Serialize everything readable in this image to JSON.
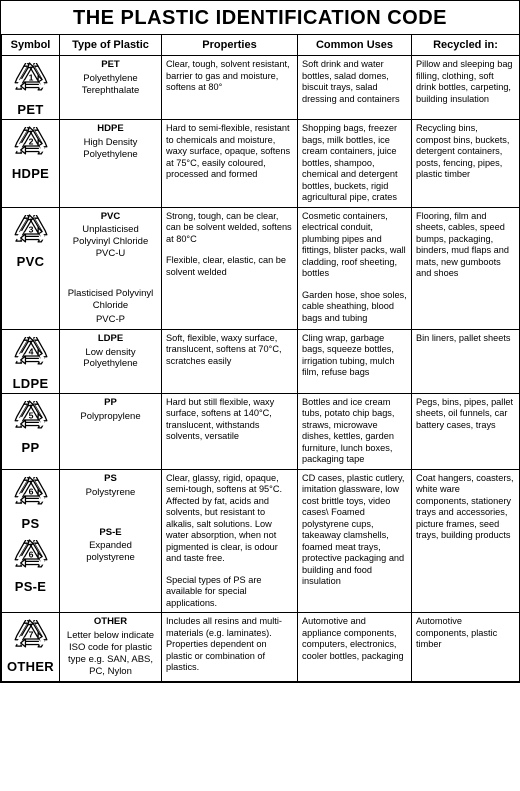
{
  "title": "THE PLASTIC IDENTIFICATION CODE",
  "title_fontsize": 20,
  "headers": {
    "symbol": "Symbol",
    "type": "Type of Plastic",
    "properties": "Properties",
    "uses": "Common Uses",
    "recycled": "Recycled in:"
  },
  "header_fontsize": 11,
  "symbol_svg": {
    "size": 38,
    "stroke": "#000000",
    "stroke_width": 1.6,
    "number_fontsize": 11
  },
  "rows": [
    {
      "code": "1",
      "label": "PET",
      "types": [
        {
          "name": "PET",
          "sub": "Polyethylene Terephthalate"
        }
      ],
      "properties": "Clear, tough, solvent resistant, barrier to gas and moisture, softens at 80°",
      "uses": "Soft drink and water bottles, salad domes, biscuit trays, salad dressing and containers",
      "recycled": "Pillow and sleeping bag filling, clothing, soft drink bottles, carpeting, building insulation"
    },
    {
      "code": "2",
      "label": "HDPE",
      "types": [
        {
          "name": "HDPE",
          "sub": "High Density Polyethylene"
        }
      ],
      "properties": "Hard to semi-flexible, resistant to chemicals and moisture, waxy surface, opaque, softens at 75°C, easily coloured, processed and formed",
      "uses": "Shopping bags, freezer bags, milk bottles, ice cream containers, juice bottles, shampoo, chemical and detergent bottles, buckets, rigid agricultural pipe, crates",
      "recycled": "Recycling bins, compost bins, buckets, detergent containers, posts, fencing, pipes, plastic timber"
    },
    {
      "code": "3",
      "label": "PVC",
      "types": [
        {
          "name": "PVC",
          "sub": "Unplasticised Polyvinyl Chloride PVC-U"
        },
        {
          "name": "",
          "sub": "Plasticised Polyvinyl Chloride",
          "extra": "PVC-P"
        }
      ],
      "properties_multi": [
        "Strong, tough, can be clear, can be solvent welded, softens at 80°C",
        "Flexible, clear, elastic, can be solvent welded"
      ],
      "uses_multi": [
        "Cosmetic containers, electrical conduit, plumbing pipes and fittings, blister packs, wall cladding, roof sheeting, bottles",
        "Garden hose, shoe soles, cable sheathing, blood bags and tubing"
      ],
      "recycled": "Flooring, film and sheets, cables, speed bumps, packaging, binders, mud flaps and mats, new gumboots and shoes"
    },
    {
      "code": "4",
      "label": "LDPE",
      "types": [
        {
          "name": "LDPE",
          "sub": "Low density Polyethylene"
        }
      ],
      "properties": "Soft, flexible, waxy surface, translucent, softens at 70°C, scratches easily",
      "uses": "Cling wrap, garbage bags, squeeze bottles, irrigation tubing, mulch film, refuse bags",
      "recycled": "Bin liners, pallet sheets"
    },
    {
      "code": "5",
      "label": "PP",
      "types": [
        {
          "name": "PP",
          "sub": "Polypropylene"
        }
      ],
      "properties": "Hard but still flexible, waxy surface, softens at 140°C, translucent, withstands solvents, versatile",
      "uses": "Bottles and ice cream tubs, potato chip bags, straws, microwave dishes, kettles, garden furniture, lunch boxes, packaging tape",
      "recycled": "Pegs, bins, pipes, pallet sheets, oil funnels, car battery cases, trays"
    },
    {
      "code": "6",
      "label": "PS",
      "second_code": "6",
      "second_label": "PS-E",
      "types": [
        {
          "name": "PS",
          "sub": "Polystyrene"
        },
        {
          "name": "PS-E",
          "sub": "Expanded polystyrene"
        }
      ],
      "properties_multi": [
        "Clear, glassy, rigid, opaque, semi-tough, softens at 95°C. Affected by fat, acids and solvents, but resistant to alkalis, salt solutions.  Low water absorption, when not pigmented is clear, is odour and taste free.",
        "Special types of PS are available for special applications."
      ],
      "uses": "CD cases, plastic cutlery, imitation glassware, low cost brittle toys, video cases\\ Foamed polystyrene cups, takeaway clamshells, foamed meat trays, protective packaging and building and food insulation",
      "recycled": "Coat hangers, coasters, white ware components, stationery trays and accessories, picture frames, seed trays, building products"
    },
    {
      "code": "7",
      "label": "OTHER",
      "types": [
        {
          "name": "OTHER",
          "sub": "Letter below indicate ISO code for plastic type e.g. SAN, ABS, PC, Nylon"
        }
      ],
      "properties": "Includes all resins and multi-materials (e.g. laminates). Properties dependent on plastic or combination of plastics.",
      "uses": "Automotive and appliance components, computers, electronics, cooler bottles, packaging",
      "recycled": "Automotive components, plastic timber"
    }
  ]
}
